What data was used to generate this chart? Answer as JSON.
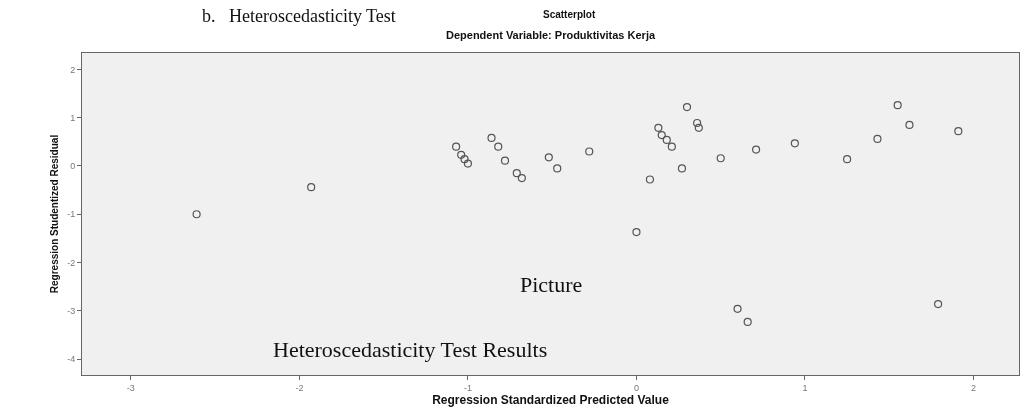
{
  "chart_data": {
    "type": "scatter",
    "title": "Scatterplot",
    "subtitle": "Dependent Variable: Produktivitas Kerja",
    "xlabel": "Regression Standardized Predicted Value",
    "ylabel": "Regression Studentized Residual",
    "annotations": [
      "b.   Heteroscedasticity Test",
      "Picture",
      "Heteroscedasticity Test Results"
    ],
    "series": [
      {
        "color": "#555555",
        "x": [
          -2.61,
          -1.93,
          -1.07,
          -1.04,
          -1.02,
          -1.0,
          -0.86,
          -0.82,
          -0.78,
          -0.71,
          -0.68,
          -0.52,
          -0.47,
          -0.28,
          0.0,
          0.08,
          0.13,
          0.15,
          0.18,
          0.21,
          0.27,
          0.3,
          0.36,
          0.37,
          0.5,
          0.6,
          0.66,
          0.71,
          0.94,
          1.25,
          1.43,
          1.55,
          1.62,
          1.79,
          1.91
        ],
        "values": [
          -1.0,
          -0.44,
          0.4,
          0.23,
          0.14,
          0.05,
          0.58,
          0.4,
          0.11,
          -0.15,
          -0.25,
          0.18,
          -0.05,
          0.3,
          -1.37,
          -0.28,
          0.79,
          0.64,
          0.54,
          0.4,
          -0.05,
          1.22,
          0.89,
          0.79,
          0.16,
          -2.96,
          -3.23,
          0.34,
          0.47,
          0.14,
          0.56,
          1.26,
          0.85,
          -2.86,
          0.72
        ]
      }
    ],
    "xlim": [
      -3.29,
      2.27
    ],
    "ylim": [
      -4.33,
      2.34
    ],
    "xticks": [
      -3,
      -2,
      -1,
      0,
      1,
      2
    ],
    "yticks": [
      -4,
      -3,
      -2,
      -1,
      0,
      1,
      2
    ],
    "marker": "circle",
    "grid": false,
    "legend": false
  }
}
